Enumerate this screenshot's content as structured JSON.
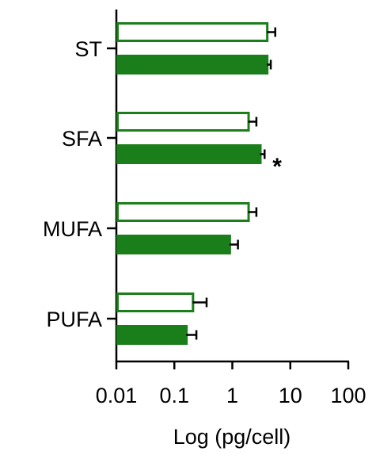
{
  "chart_data": {
    "type": "bar",
    "orientation": "horizontal",
    "xscale": "log",
    "xlim": [
      0.01,
      100
    ],
    "xlabel": "Log (pg/cell)",
    "ylabel": "",
    "title": "",
    "grid": false,
    "categories": [
      "ST",
      "SFA",
      "MUFA",
      "PUFA"
    ],
    "x_ticks": [
      0.01,
      0.1,
      1,
      10,
      100
    ],
    "x_tick_labels": [
      "0.01",
      "0.1",
      "1",
      "10",
      "100"
    ],
    "series": [
      {
        "style": "open",
        "color": "#1a7f1a",
        "values": [
          4.2,
          2.0,
          2.0,
          0.22
        ],
        "errors": [
          5.5,
          2.6,
          2.6,
          0.36
        ]
      },
      {
        "style": "filled",
        "color": "#1a7f1a",
        "values": [
          4.2,
          3.2,
          0.95,
          0.17
        ],
        "errors": [
          4.6,
          3.6,
          1.25,
          0.24
        ]
      }
    ],
    "annotations": [
      {
        "category": "SFA",
        "series": 1,
        "text": "*"
      }
    ]
  }
}
